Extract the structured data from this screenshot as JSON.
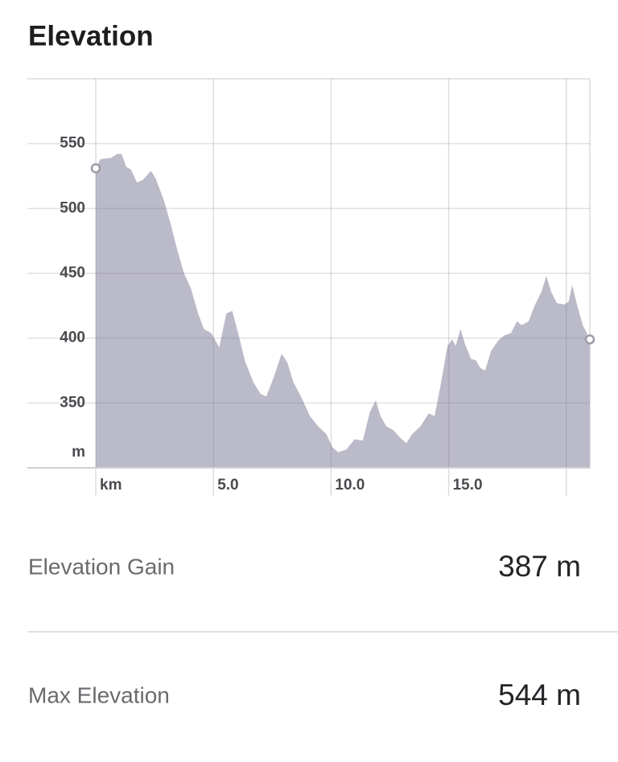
{
  "chart_data": {
    "type": "area",
    "title": "Elevation",
    "color": "#bbbac8",
    "x": [
      0,
      0.2,
      0.65,
      0.9,
      1.1,
      1.3,
      1.5,
      1.75,
      2.0,
      2.35,
      2.55,
      2.9,
      3.2,
      3.45,
      3.75,
      4.05,
      4.35,
      4.6,
      4.9,
      5.25,
      5.55,
      5.8,
      6.05,
      6.35,
      6.7,
      7.0,
      7.25,
      7.55,
      7.9,
      8.15,
      8.4,
      8.75,
      9.1,
      9.45,
      9.8,
      10.05,
      10.3,
      10.65,
      11.0,
      11.35,
      11.65,
      11.9,
      12.1,
      12.35,
      12.65,
      12.95,
      13.2,
      13.45,
      13.8,
      14.15,
      14.4,
      14.65,
      14.95,
      15.15,
      15.3,
      15.5,
      15.7,
      15.95,
      16.15,
      16.35,
      16.55,
      16.8,
      17.1,
      17.35,
      17.65,
      17.9,
      18.1,
      18.4,
      18.65,
      18.95,
      19.15,
      19.35,
      19.6,
      19.9,
      20.1,
      20.25,
      20.45,
      20.7,
      21.0
    ],
    "y": [
      531,
      538,
      539,
      542,
      542,
      532,
      530,
      520,
      522,
      529,
      523,
      506,
      487,
      469,
      450,
      438,
      419,
      407,
      404,
      393,
      419,
      421,
      404,
      382,
      366,
      357,
      355,
      369,
      388,
      381,
      366,
      354,
      340,
      332,
      326,
      316,
      312,
      314,
      322,
      321,
      343,
      352,
      340,
      332,
      329,
      323,
      319,
      326,
      332,
      342,
      340,
      363,
      394,
      399,
      394,
      407,
      395,
      384,
      383,
      377,
      375,
      390,
      398,
      402,
      404,
      413,
      410,
      413,
      425,
      436,
      448,
      436,
      427,
      426,
      428,
      441,
      426,
      410,
      399
    ],
    "xlim": [
      0,
      21
    ],
    "ylim": [
      300,
      600
    ],
    "xticks": [
      {
        "value": 0,
        "label": "km"
      },
      {
        "value": 5,
        "label": "5.0"
      },
      {
        "value": 10,
        "label": "10.0"
      },
      {
        "value": 15,
        "label": "15.0"
      },
      {
        "value": 20,
        "label": null
      }
    ],
    "yticks": [
      350,
      400,
      450,
      500,
      550
    ],
    "y_unit": "m",
    "grid": true
  },
  "stats": [
    {
      "label": "Elevation Gain",
      "value": "387 m"
    },
    {
      "label": "Max Elevation",
      "value": "544 m"
    }
  ]
}
